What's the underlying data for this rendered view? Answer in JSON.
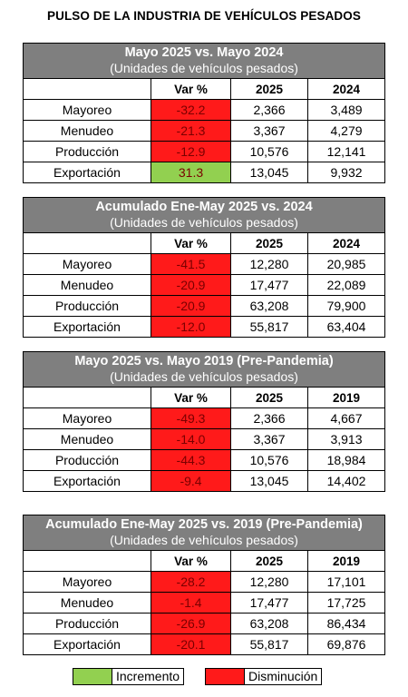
{
  "title": "PULSO DE LA INDUSTRIA DE VEHÍCULOS PESADOS",
  "colors": {
    "header_bg": "#7f7f7f",
    "increase": "#92d050",
    "decrease": "#ff1a1a"
  },
  "tables": [
    {
      "title": "Mayo 2025 vs. Mayo 2024",
      "subtitle": "(Unidades de vehículos pesados)",
      "columns": [
        "Var %",
        "2025",
        "2024"
      ],
      "rows": [
        {
          "label": "Mayoreo",
          "var": "-32.2",
          "trend": "dec",
          "a": "2,366",
          "b": "3,489"
        },
        {
          "label": "Menudeo",
          "var": "-21.3",
          "trend": "dec",
          "a": "3,367",
          "b": "4,279"
        },
        {
          "label": "Producción",
          "var": "-12.9",
          "trend": "dec",
          "a": "10,576",
          "b": "12,141"
        },
        {
          "label": "Exportación",
          "var": "31.3",
          "trend": "inc",
          "a": "13,045",
          "b": "9,932"
        }
      ]
    },
    {
      "title": "Acumulado Ene-May 2025 vs. 2024",
      "subtitle": "(Unidades de vehículos pesados)",
      "columns": [
        "Var %",
        "2025",
        "2024"
      ],
      "rows": [
        {
          "label": "Mayoreo",
          "var": "-41.5",
          "trend": "dec",
          "a": "12,280",
          "b": "20,985"
        },
        {
          "label": "Menudeo",
          "var": "-20.9",
          "trend": "dec",
          "a": "17,477",
          "b": "22,089"
        },
        {
          "label": "Producción",
          "var": "-20.9",
          "trend": "dec",
          "a": "63,208",
          "b": "79,900"
        },
        {
          "label": "Exportación",
          "var": "-12.0",
          "trend": "dec",
          "a": "55,817",
          "b": "63,404"
        }
      ]
    },
    {
      "title": "Mayo 2025 vs. Mayo 2019 (Pre-Pandemia)",
      "subtitle": "(Unidades de vehículos pesados)",
      "columns": [
        "Var %",
        "2025",
        "2019"
      ],
      "rows": [
        {
          "label": "Mayoreo",
          "var": "-49.3",
          "trend": "dec",
          "a": "2,366",
          "b": "4,667"
        },
        {
          "label": "Menudeo",
          "var": "-14.0",
          "trend": "dec",
          "a": "3,367",
          "b": "3,913"
        },
        {
          "label": "Producción",
          "var": "-44.3",
          "trend": "dec",
          "a": "10,576",
          "b": "18,984"
        },
        {
          "label": "Exportación",
          "var": "-9.4",
          "trend": "dec",
          "a": "13,045",
          "b": "14,402"
        }
      ]
    },
    {
      "title": "Acumulado Ene-May 2025 vs. 2019 (Pre-Pandemia)",
      "subtitle": "(Unidades de vehículos pesados)",
      "columns": [
        "Var %",
        "2025",
        "2019"
      ],
      "rows": [
        {
          "label": "Mayoreo",
          "var": "-28.2",
          "trend": "dec",
          "a": "12,280",
          "b": "17,101"
        },
        {
          "label": "Menudeo",
          "var": "-1.4",
          "trend": "dec",
          "a": "17,477",
          "b": "17,725"
        },
        {
          "label": "Producción",
          "var": "-26.9",
          "trend": "dec",
          "a": "63,208",
          "b": "86,434"
        },
        {
          "label": "Exportación",
          "var": "-20.1",
          "trend": "dec",
          "a": "55,817",
          "b": "69,876"
        }
      ]
    }
  ],
  "legend": {
    "increase_label": "Incremento",
    "decrease_label": "Disminución"
  }
}
